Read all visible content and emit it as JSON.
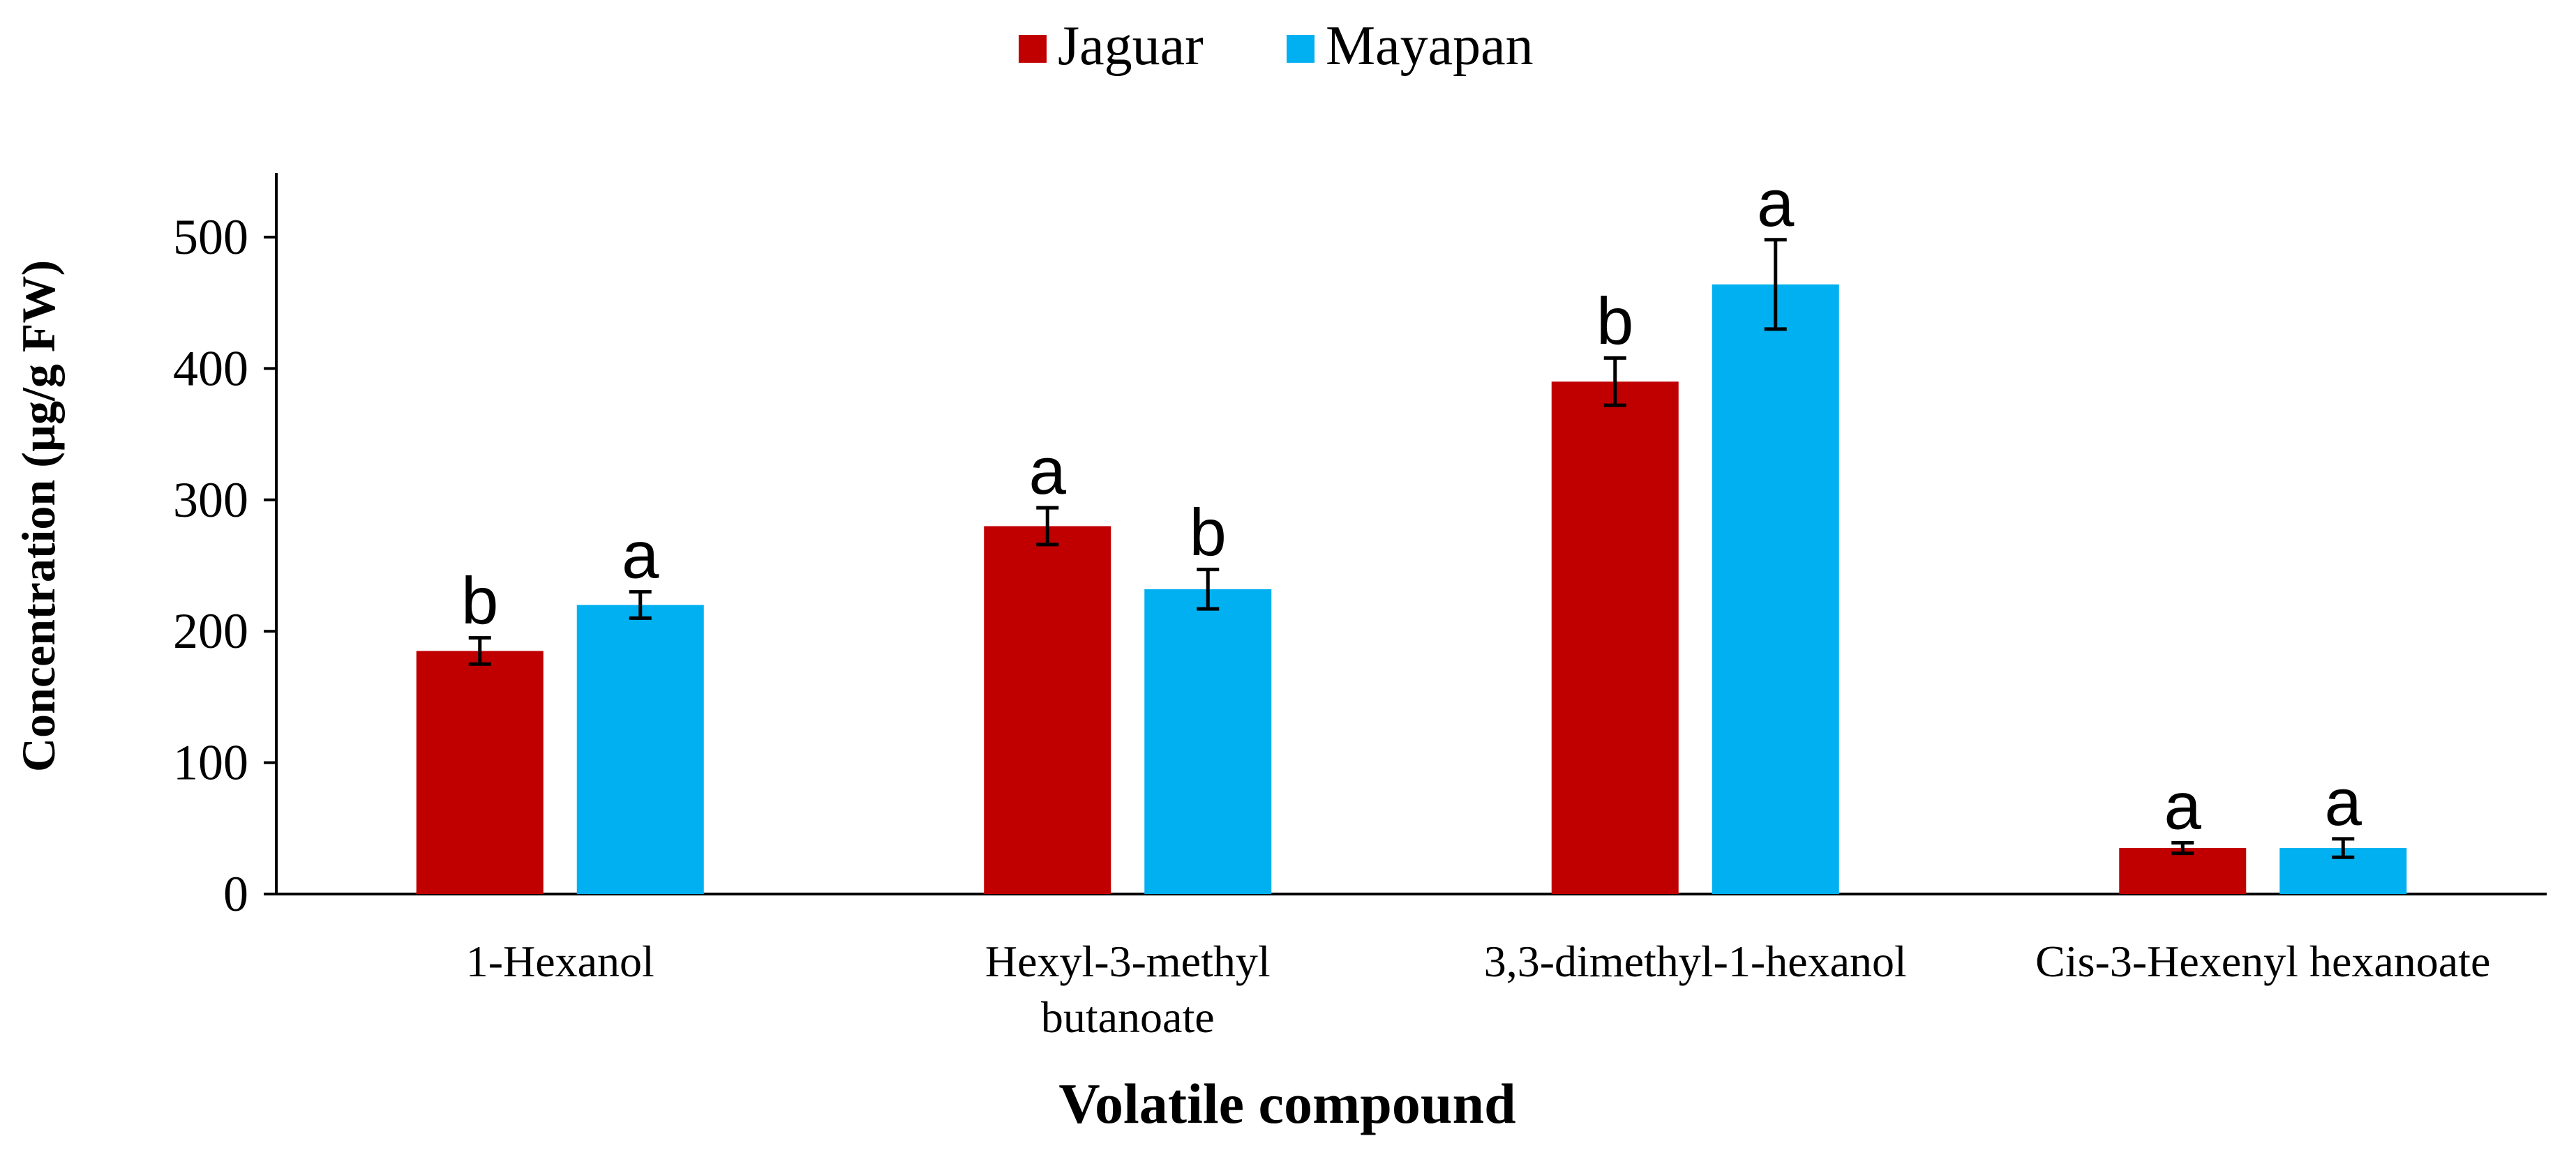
{
  "chart_data": {
    "type": "bar",
    "categories": [
      [
        "1-Hexanol"
      ],
      [
        "Hexyl-3-methyl",
        "butanoate"
      ],
      [
        "3,3-dimethyl-1-hexanol"
      ],
      [
        "Cis-3-Hexenyl hexanoate"
      ]
    ],
    "series": [
      {
        "name": "Jaguar",
        "color": "#C00000",
        "values": [
          185,
          280,
          390,
          35
        ],
        "errors": [
          10,
          14,
          18,
          4
        ],
        "letters": [
          "b",
          "a",
          "b",
          "a"
        ]
      },
      {
        "name": "Mayapan",
        "color": "#00B0F0",
        "values": [
          220,
          232,
          464,
          35
        ],
        "errors": [
          10,
          15,
          34,
          7
        ],
        "letters": [
          "a",
          "b",
          "a",
          "a"
        ]
      }
    ],
    "xlabel": "Volatile compound",
    "ylabel": "Concentration (µg/g FW)",
    "ylim": [
      0,
      500
    ],
    "yticks": [
      0,
      100,
      200,
      300,
      400,
      500
    ],
    "legend": "top-center",
    "grid": false
  }
}
